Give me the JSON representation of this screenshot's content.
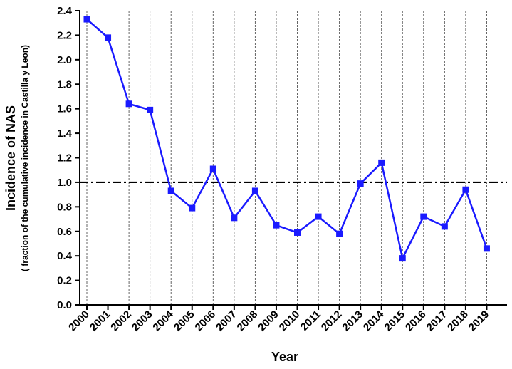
{
  "chart_data": {
    "type": "line",
    "title": "",
    "xlabel": "Year",
    "ylabel": "Incidence of NAS",
    "ylabel_sub": "( fraction of the cumulative incidence in Castilla y Leon)",
    "ylim": [
      0,
      2.4
    ],
    "yticks": [
      "0.0",
      "0.2",
      "0.4",
      "0.6",
      "0.8",
      "1.0",
      "1.2",
      "1.4",
      "1.6",
      "1.8",
      "2.0",
      "2.2",
      "2.4"
    ],
    "categories": [
      "2000",
      "2001",
      "2002",
      "2003",
      "2004",
      "2005",
      "2006",
      "2007",
      "2008",
      "2009",
      "2010",
      "2011",
      "2012",
      "2013",
      "2014",
      "2015",
      "2016",
      "2017",
      "2018",
      "2019"
    ],
    "series": [
      {
        "values": [
          2.33,
          2.18,
          1.64,
          1.59,
          0.93,
          0.79,
          1.11,
          0.71,
          0.93,
          0.65,
          0.59,
          0.72,
          0.58,
          0.99,
          1.16,
          0.38,
          0.72,
          0.64,
          0.94,
          0.46
        ],
        "color": "#1a1aff",
        "marker": "square"
      }
    ],
    "reference_line": {
      "y": 1.0,
      "style": "dash-dot",
      "color": "#000000"
    },
    "vertical_gridlines": "dashed at each year",
    "grid": true,
    "legend": "none"
  }
}
